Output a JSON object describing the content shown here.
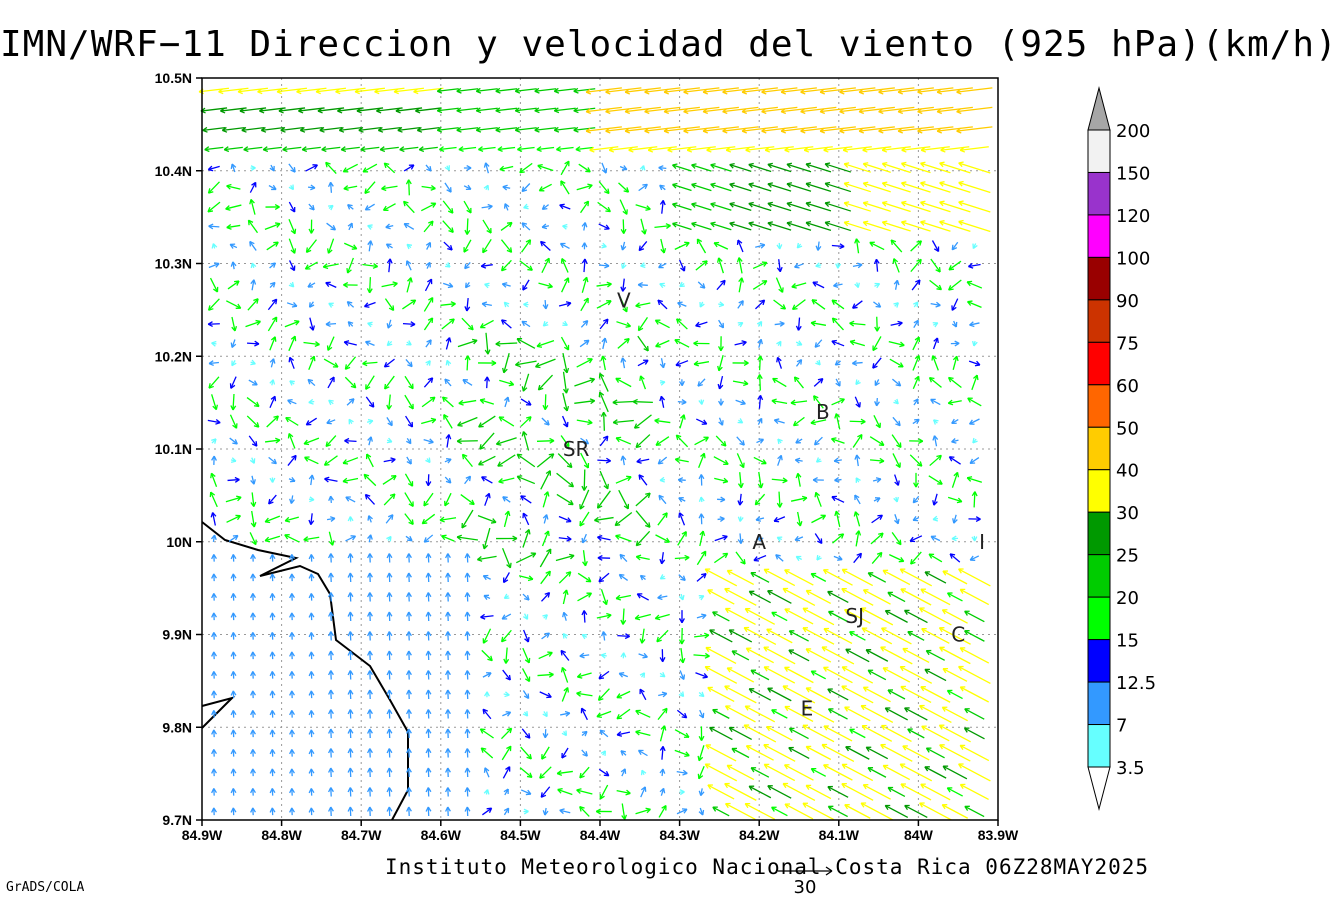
{
  "title": "IMN/WRF−11 Direccion y velocidad del viento (925 hPa)(km/h)",
  "credit": "Instituto Meteorologico Nacional Costa Rica 06Z28MAY2025",
  "software": "GrADS/COLA",
  "reference_vector": {
    "label": "30",
    "speed": 30
  },
  "map": {
    "lon_range": [
      -84.9,
      -83.9
    ],
    "lat_range": [
      9.7,
      10.5
    ],
    "lon_ticks": [
      "84.9W",
      "84.8W",
      "84.7W",
      "84.6W",
      "84.5W",
      "84.4W",
      "84.3W",
      "84.2W",
      "84.1W",
      "84W",
      "83.9W"
    ],
    "lat_ticks": [
      "10.5N",
      "10.4N",
      "10.3N",
      "10.2N",
      "10.1N",
      "10N",
      "9.9N",
      "9.8N",
      "9.7N"
    ],
    "grid": true,
    "cities": [
      {
        "label": "V",
        "lon": -84.37,
        "lat": 10.26
      },
      {
        "label": "B",
        "lon": -84.12,
        "lat": 10.14
      },
      {
        "label": "SR",
        "lon": -84.43,
        "lat": 10.1
      },
      {
        "label": "A",
        "lon": -84.2,
        "lat": 10.0
      },
      {
        "label": "I",
        "lon": -83.92,
        "lat": 10.0
      },
      {
        "label": "SJ",
        "lon": -84.08,
        "lat": 9.92
      },
      {
        "label": "C",
        "lon": -83.95,
        "lat": 9.9
      },
      {
        "label": "E",
        "lon": -84.14,
        "lat": 9.82
      }
    ]
  },
  "colorbar": {
    "labels": [
      "200",
      "150",
      "120",
      "100",
      "90",
      "75",
      "60",
      "50",
      "40",
      "30",
      "25",
      "20",
      "15",
      "12.5",
      "7",
      "3.5"
    ],
    "colors": [
      "#f2f2f2",
      "#9933cc",
      "#ff00ff",
      "#990000",
      "#cc3300",
      "#ff0000",
      "#ff6600",
      "#ffcc00",
      "#ffff00",
      "#009900",
      "#00cc00",
      "#00ff00",
      "#0000ff",
      "#3399ff",
      "#66ffff"
    ],
    "top_cap_color": "#a6a6a6",
    "bottom_cap_color": "#ffffff"
  }
}
